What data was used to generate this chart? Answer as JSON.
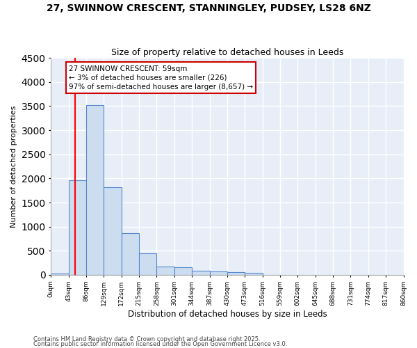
{
  "title_line1": "27, SWINNOW CRESCENT, STANNINGLEY, PUDSEY, LS28 6NZ",
  "title_line2": "Size of property relative to detached houses in Leeds",
  "xlabel": "Distribution of detached houses by size in Leeds",
  "ylabel": "Number of detached properties",
  "bar_values": [
    30,
    1960,
    3520,
    1820,
    860,
    450,
    165,
    155,
    90,
    65,
    50,
    40,
    0,
    0,
    0,
    0,
    0,
    0,
    0,
    0
  ],
  "bin_edges": [
    0,
    43,
    86,
    129,
    172,
    215,
    258,
    301,
    344,
    387,
    430,
    473,
    516,
    559,
    602,
    645,
    688,
    731,
    774,
    817,
    860
  ],
  "tick_labels": [
    "0sqm",
    "43sqm",
    "86sqm",
    "129sqm",
    "172sqm",
    "215sqm",
    "258sqm",
    "301sqm",
    "344sqm",
    "387sqm",
    "430sqm",
    "473sqm",
    "516sqm",
    "559sqm",
    "602sqm",
    "645sqm",
    "688sqm",
    "731sqm",
    "774sqm",
    "817sqm",
    "860sqm"
  ],
  "bar_color": "#ccddf0",
  "bar_edge_color": "#5588cc",
  "background_color": "#e8eef8",
  "grid_color": "#ffffff",
  "red_line_x": 59,
  "annotation_text": "27 SWINNOW CRESCENT: 59sqm\n← 3% of detached houses are smaller (226)\n97% of semi-detached houses are larger (8,657) →",
  "annotation_box_color": "#ffffff",
  "annotation_box_edge": "#cc0000",
  "ylim": [
    0,
    4500
  ],
  "yticks": [
    0,
    500,
    1000,
    1500,
    2000,
    2500,
    3000,
    3500,
    4000,
    4500
  ],
  "footer_line1": "Contains HM Land Registry data © Crown copyright and database right 2025.",
  "footer_line2": "Contains public sector information licensed under the Open Government Licence v3.0."
}
